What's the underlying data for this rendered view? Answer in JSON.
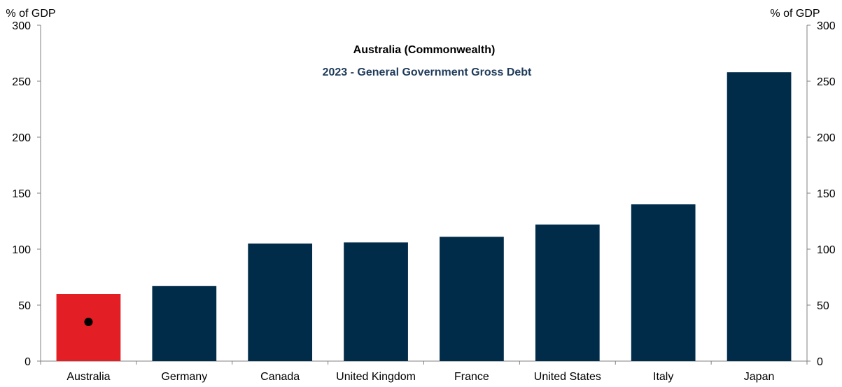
{
  "chart_data": {
    "type": "bar",
    "title": "Australia (Commonwealth)",
    "subtitle": "2023 - General Government Gross Debt",
    "ylabel_left": "% of GDP",
    "ylabel_right": "% of GDP",
    "categories": [
      "Australia",
      "Germany",
      "Canada",
      "United Kingdom",
      "France",
      "United States",
      "Italy",
      "Japan"
    ],
    "values": [
      60,
      67,
      105,
      106,
      111,
      122,
      140,
      258
    ],
    "ylim": [
      0,
      300
    ],
    "yticks": [
      0,
      50,
      100,
      150,
      200,
      250,
      300
    ],
    "highlight_index": 0,
    "highlight_marker_value": 35,
    "colors": {
      "bar": "#002B49",
      "highlight": "#E31E24",
      "marker": "#000000",
      "title": "#000000",
      "subtitle": "#1F3B5A",
      "axis": "#808080",
      "text": "#000000"
    },
    "grid": false,
    "legend": "none"
  }
}
